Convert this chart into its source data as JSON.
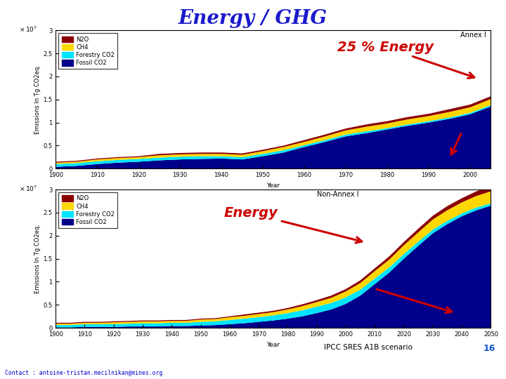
{
  "title": "Energy / GHG",
  "title_color": "#1a1acc",
  "title_fontsize": 20,
  "title_fontstyle": "italic",
  "title_fontweight": "bold",
  "annex_label": "Annex I",
  "nonannex_label": "Non-Annex I",
  "ylabel": "Emissions In Tg CO2eq.",
  "xlabel": "Year",
  "colors": {
    "N2O": "#8b0000",
    "CH4": "#ffd700",
    "ForestCO2": "#00e5ff",
    "FossilCO2": "#00008b"
  },
  "annex_years": [
    1900,
    1905,
    1910,
    1915,
    1920,
    1925,
    1930,
    1935,
    1940,
    1945,
    1950,
    1955,
    1960,
    1965,
    1970,
    1975,
    1980,
    1985,
    1990,
    1995,
    2000,
    2005
  ],
  "annex_fossil": [
    0.04,
    0.06,
    0.1,
    0.13,
    0.15,
    0.18,
    0.2,
    0.21,
    0.22,
    0.2,
    0.27,
    0.35,
    0.47,
    0.58,
    0.7,
    0.77,
    0.85,
    0.93,
    1.0,
    1.08,
    1.18,
    1.35
  ],
  "annex_forestry": [
    0.06,
    0.06,
    0.06,
    0.06,
    0.06,
    0.06,
    0.06,
    0.06,
    0.05,
    0.05,
    0.05,
    0.05,
    0.04,
    0.04,
    0.04,
    0.04,
    0.03,
    0.03,
    0.03,
    0.03,
    0.03,
    0.03
  ],
  "annex_ch4": [
    0.03,
    0.03,
    0.04,
    0.04,
    0.04,
    0.05,
    0.05,
    0.05,
    0.05,
    0.05,
    0.06,
    0.07,
    0.07,
    0.08,
    0.09,
    0.1,
    0.1,
    0.11,
    0.11,
    0.12,
    0.12,
    0.13
  ],
  "annex_n2o": [
    0.02,
    0.02,
    0.02,
    0.02,
    0.02,
    0.03,
    0.03,
    0.03,
    0.03,
    0.03,
    0.03,
    0.03,
    0.04,
    0.04,
    0.04,
    0.05,
    0.05,
    0.05,
    0.05,
    0.06,
    0.06,
    0.06
  ],
  "nonannex_years": [
    1900,
    1905,
    1910,
    1915,
    1920,
    1925,
    1930,
    1935,
    1940,
    1945,
    1950,
    1955,
    1960,
    1965,
    1970,
    1975,
    1980,
    1985,
    1990,
    1995,
    2000,
    2005,
    2010,
    2015,
    2020,
    2025,
    2030,
    2035,
    2040,
    2045,
    2050
  ],
  "nonannex_fossil": [
    0.01,
    0.01,
    0.02,
    0.02,
    0.02,
    0.03,
    0.03,
    0.03,
    0.04,
    0.04,
    0.05,
    0.06,
    0.08,
    0.1,
    0.13,
    0.16,
    0.2,
    0.25,
    0.32,
    0.4,
    0.52,
    0.7,
    0.95,
    1.2,
    1.5,
    1.78,
    2.05,
    2.25,
    2.42,
    2.55,
    2.65
  ],
  "nonannex_forestry": [
    0.05,
    0.05,
    0.06,
    0.06,
    0.06,
    0.06,
    0.07,
    0.07,
    0.07,
    0.07,
    0.08,
    0.08,
    0.09,
    0.1,
    0.1,
    0.11,
    0.12,
    0.13,
    0.14,
    0.14,
    0.14,
    0.13,
    0.12,
    0.11,
    0.1,
    0.09,
    0.08,
    0.07,
    0.06,
    0.06,
    0.05
  ],
  "nonannex_ch4": [
    0.03,
    0.03,
    0.03,
    0.03,
    0.04,
    0.04,
    0.04,
    0.04,
    0.04,
    0.04,
    0.05,
    0.05,
    0.06,
    0.06,
    0.07,
    0.07,
    0.08,
    0.09,
    0.1,
    0.11,
    0.13,
    0.14,
    0.16,
    0.17,
    0.19,
    0.2,
    0.22,
    0.23,
    0.24,
    0.25,
    0.26
  ],
  "nonannex_n2o": [
    0.02,
    0.02,
    0.02,
    0.02,
    0.02,
    0.02,
    0.02,
    0.02,
    0.02,
    0.02,
    0.02,
    0.02,
    0.02,
    0.03,
    0.03,
    0.03,
    0.03,
    0.04,
    0.04,
    0.05,
    0.05,
    0.06,
    0.06,
    0.07,
    0.07,
    0.08,
    0.08,
    0.09,
    0.09,
    0.1,
    0.1
  ],
  "annex_xlim": [
    1900,
    2005
  ],
  "annex_ylim": [
    0,
    3
  ],
  "nonannex_xlim": [
    1900,
    2050
  ],
  "nonannex_ylim": [
    0,
    3
  ],
  "annotation1_text": "25 % Energy",
  "annotation1_color": "#cc0000",
  "annotation1_fontsize": 14,
  "annotation1_fontweight": "bold",
  "annotation1_fontstyle": "italic",
  "annotation2_text": "Energy",
  "annotation2_color": "#cc0000",
  "annotation2_fontsize": 14,
  "annotation2_fontweight": "bold",
  "annotation2_fontstyle": "italic",
  "bottom_text1": "IPCC SRES A1B scenario",
  "bottom_num": "16",
  "contact_text": "Contact : antoine-tristan.mecilnikan@mines.org",
  "contact_color": "#0000cc",
  "bg_color": "#ffffff",
  "plot_bg": "#ffffff",
  "axes_color": "#c8c8c8"
}
